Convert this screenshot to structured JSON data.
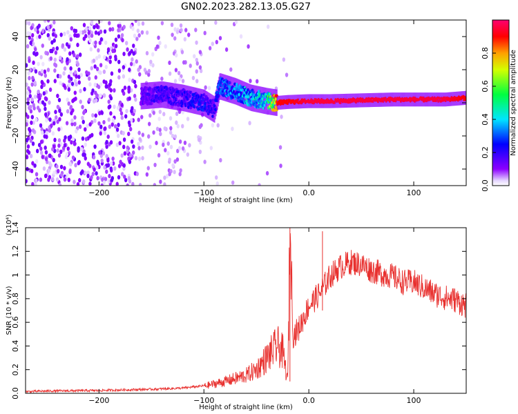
{
  "figure_title": "GN02.2023.282.13.05.G27",
  "colors": {
    "snr_line": "#e8302e",
    "spectrogram_low": "#7a00ff",
    "spectrogram_high": "#ff0040"
  },
  "chart_data": [
    {
      "type": "heatmap",
      "name": "spectrogram",
      "xlabel": "Height of straight line (km)",
      "ylabel": "Frequency (Hz)",
      "xlim": [
        -270,
        150
      ],
      "ylim": [
        -50,
        50
      ],
      "x_ticks": [
        -200,
        -100,
        0,
        100
      ],
      "y_ticks": [
        -40,
        -20,
        0,
        20,
        40
      ],
      "colorbar": {
        "label": "Normalized spectral amplitude",
        "range": [
          0,
          1
        ],
        "ticks": [
          0.0,
          0.2,
          0.4,
          0.6,
          0.8
        ],
        "colormap": "rainbow (violet to magenta-red)"
      },
      "ridge": {
        "description_free": true,
        "x": [
          -160,
          -140,
          -120,
          -100,
          -90,
          -85,
          -70,
          -55,
          -40,
          -30,
          -20,
          0,
          20,
          50,
          80,
          100,
          130,
          150
        ],
        "y": [
          4,
          5,
          3,
          0,
          -4,
          10,
          7,
          3,
          1,
          0,
          0.5,
          1,
          1,
          1.5,
          2,
          2,
          2,
          3
        ],
        "amplitude": [
          0.15,
          0.2,
          0.2,
          0.25,
          0.2,
          0.3,
          0.35,
          0.4,
          0.45,
          0.9,
          0.9,
          0.95,
          0.95,
          0.95,
          0.95,
          0.95,
          0.95,
          0.9
        ]
      }
    },
    {
      "type": "line",
      "name": "snr",
      "xlabel": "Height of straight line (km)",
      "ylabel": "SNR (10 * v/v)",
      "y_multiplier": "(x10⁴)",
      "xlim": [
        -270,
        150
      ],
      "ylim": [
        0,
        1.4
      ],
      "x_ticks": [
        -200,
        -100,
        0,
        100
      ],
      "y_ticks": [
        0.0,
        0.2,
        0.4,
        0.6,
        0.8,
        1.0,
        1.2,
        1.4
      ],
      "series": [
        {
          "x": [
            -270,
            -250,
            -200,
            -150,
            -120,
            -100,
            -80,
            -60,
            -50,
            -40,
            -30,
            -25,
            -20,
            -18,
            -15,
            -10,
            -5,
            0,
            10,
            20,
            30,
            40,
            50,
            60,
            70,
            80,
            90,
            100,
            110,
            120,
            130,
            140,
            150
          ],
          "values": [
            0.01,
            0.015,
            0.02,
            0.03,
            0.04,
            0.06,
            0.1,
            0.15,
            0.2,
            0.3,
            0.4,
            0.35,
            0.1,
            1.4,
            0.5,
            0.55,
            0.65,
            0.75,
            0.85,
            1.0,
            1.08,
            1.12,
            1.1,
            1.05,
            1.02,
            1.0,
            0.95,
            0.95,
            0.9,
            0.85,
            0.82,
            0.8,
            0.75
          ]
        }
      ]
    }
  ]
}
